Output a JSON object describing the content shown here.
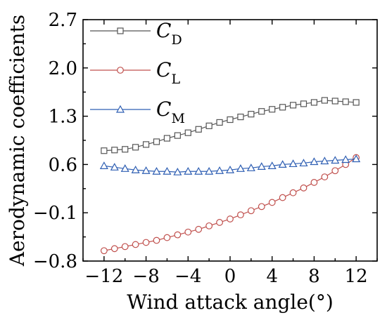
{
  "chart_data": {
    "type": "line",
    "xlabel": "Wind attack angle(°)",
    "ylabel": "Aerodynamic coefficients",
    "xlim": [
      -14,
      14
    ],
    "ylim": [
      -0.8,
      2.7
    ],
    "xticks": [
      -12,
      -8,
      -4,
      0,
      4,
      8,
      12
    ],
    "xtick_labels": [
      "−12",
      "−8",
      "−4",
      "0",
      "4",
      "8",
      "12"
    ],
    "yticks": [
      -0.8,
      -0.1,
      0.6,
      1.3,
      2.0,
      2.7
    ],
    "ytick_labels": [
      "−0.8",
      "−0.1",
      "0.6",
      "1.3",
      "2.0",
      "2.7"
    ],
    "legend_position": "top-left",
    "x": [
      -12,
      -11,
      -10,
      -9,
      -8,
      -7,
      -6,
      -5,
      -4,
      -3,
      -2,
      -1,
      0,
      1,
      2,
      3,
      4,
      5,
      6,
      7,
      8,
      9,
      10,
      11,
      12
    ],
    "series": [
      {
        "name": "C",
        "subscript": "D",
        "color": "#555555",
        "marker": "square",
        "values": [
          0.8,
          0.81,
          0.82,
          0.85,
          0.89,
          0.93,
          0.98,
          1.02,
          1.06,
          1.11,
          1.16,
          1.21,
          1.25,
          1.29,
          1.33,
          1.37,
          1.4,
          1.43,
          1.46,
          1.48,
          1.5,
          1.53,
          1.52,
          1.51,
          1.5
        ]
      },
      {
        "name": "C",
        "subscript": "L",
        "color": "#c0504d",
        "marker": "circle",
        "values": [
          -0.65,
          -0.62,
          -0.59,
          -0.56,
          -0.53,
          -0.5,
          -0.46,
          -0.42,
          -0.38,
          -0.34,
          -0.29,
          -0.24,
          -0.19,
          -0.13,
          -0.07,
          -0.01,
          0.05,
          0.12,
          0.19,
          0.26,
          0.34,
          0.42,
          0.51,
          0.6,
          0.7
        ]
      },
      {
        "name": "C",
        "subscript": "M",
        "color": "#2f5fb3",
        "marker": "triangle",
        "values": [
          0.58,
          0.56,
          0.54,
          0.52,
          0.51,
          0.5,
          0.5,
          0.49,
          0.5,
          0.5,
          0.5,
          0.51,
          0.52,
          0.54,
          0.55,
          0.57,
          0.58,
          0.6,
          0.61,
          0.62,
          0.64,
          0.65,
          0.66,
          0.67,
          0.68
        ]
      }
    ]
  }
}
